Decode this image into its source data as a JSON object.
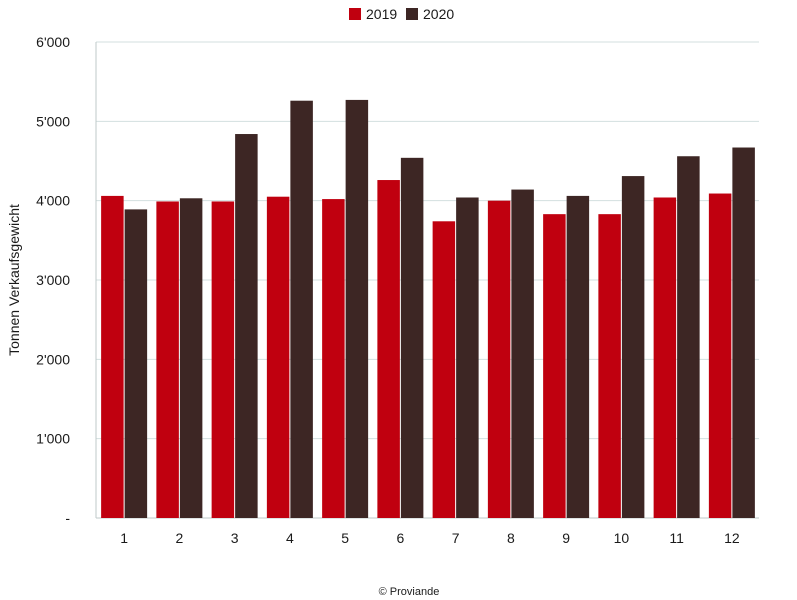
{
  "chart_data": {
    "type": "bar",
    "categories": [
      "1",
      "2",
      "3",
      "4",
      "5",
      "6",
      "7",
      "8",
      "9",
      "10",
      "11",
      "12"
    ],
    "series": [
      {
        "name": "2019",
        "color": "#c0000f",
        "values": [
          4060,
          3990,
          3990,
          4050,
          4020,
          4260,
          3740,
          4000,
          3830,
          3830,
          4040,
          4090
        ]
      },
      {
        "name": "2020",
        "color": "#3d2624",
        "values": [
          3890,
          4030,
          4840,
          5260,
          5270,
          4540,
          4040,
          4140,
          4060,
          4310,
          4560,
          4670
        ]
      }
    ],
    "ylabel": "Tonnen Verkaufsgewicht",
    "xlabel": "",
    "ylim": [
      0,
      6000
    ],
    "y_ticks": [
      0,
      1000,
      2000,
      3000,
      4000,
      5000,
      6000
    ],
    "y_tick_labels": [
      "-",
      "1'000",
      "2'000",
      "3'000",
      "4'000",
      "5'000",
      "6'000"
    ],
    "grid": true,
    "legend_position": "top-center"
  },
  "source": "© Proviande"
}
